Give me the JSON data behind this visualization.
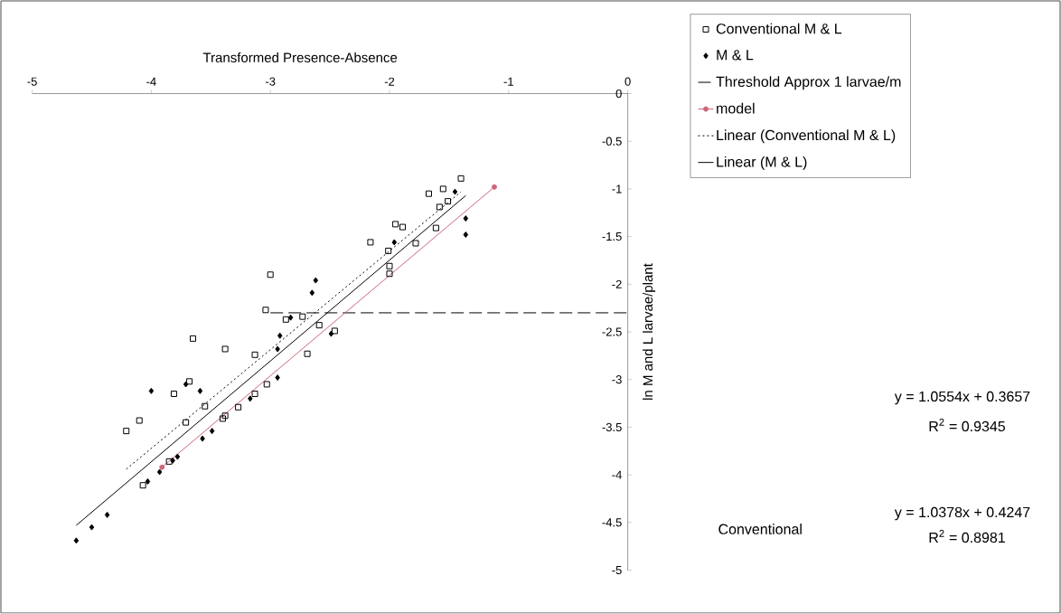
{
  "chart_data": {
    "type": "scatter",
    "xlabel": "Transformed Presence-Absence",
    "ylabel": "ln M and L larvae/plant",
    "xlim": [
      -5,
      0
    ],
    "ylim": [
      -5,
      0
    ],
    "xticks": [
      -5,
      -4,
      -3,
      -2,
      -1,
      0
    ],
    "yticks": [
      0,
      -0.5,
      -1,
      -1.5,
      -2,
      -2.5,
      -3,
      -3.5,
      -4,
      -4.5,
      -5
    ],
    "legend": "top right",
    "series": [
      {
        "name": "Conventional M & L",
        "marker": "square",
        "color": "#000000",
        "x": [
          -1.4,
          -1.55,
          -1.67,
          -1.51,
          -1.58,
          -1.61,
          -1.95,
          -1.89,
          -1.78,
          -2.16,
          -2.01,
          -2.0,
          -2.0,
          -3.0,
          -3.04,
          -2.87,
          -2.73,
          -2.59,
          -2.46,
          -2.69,
          -3.13,
          -3.38,
          -3.65,
          -3.68,
          -3.81,
          -3.03,
          -3.13,
          -3.27,
          -3.38,
          -3.4,
          -3.55,
          -3.71,
          -4.1,
          -4.21,
          -3.85,
          -4.07
        ],
        "values": [
          -0.89,
          -1.0,
          -1.05,
          -1.13,
          -1.19,
          -1.41,
          -1.37,
          -1.4,
          -1.57,
          -1.56,
          -1.65,
          -1.81,
          -1.89,
          -1.9,
          -2.27,
          -2.37,
          -2.34,
          -2.43,
          -2.49,
          -2.73,
          -2.74,
          -2.68,
          -2.57,
          -3.02,
          -3.15,
          -3.05,
          -3.15,
          -3.29,
          -3.38,
          -3.41,
          -3.28,
          -3.45,
          -3.43,
          -3.54,
          -3.86,
          -4.11
        ]
      },
      {
        "name": "M & L",
        "marker": "diamond",
        "color": "#000000",
        "x": [
          -1.45,
          -1.36,
          -1.36,
          -1.96,
          -2.62,
          -2.65,
          -2.83,
          -2.92,
          -2.94,
          -2.49,
          -2.94,
          -3.17,
          -3.71,
          -4.0,
          -3.59,
          -3.57,
          -3.49,
          -3.78,
          -3.82,
          -3.93,
          -4.03,
          -4.37,
          -4.5,
          -4.63
        ],
        "values": [
          -1.03,
          -1.31,
          -1.48,
          -1.56,
          -1.96,
          -2.09,
          -2.35,
          -2.54,
          -2.68,
          -2.52,
          -2.98,
          -3.2,
          -3.05,
          -3.12,
          -3.12,
          -3.62,
          -3.54,
          -3.81,
          -3.85,
          -3.97,
          -4.07,
          -4.42,
          -4.55,
          -4.69
        ]
      },
      {
        "name": "Threshold Approx 1 larvae/m",
        "type": "line",
        "marker": "none",
        "line_style": "dashed",
        "color": "#000000",
        "x": [
          -3.0,
          0
        ],
        "values": [
          -2.3,
          -2.3
        ]
      },
      {
        "name": "model",
        "type": "line",
        "marker": "circle",
        "line_style": "solid",
        "color": "#cc6677",
        "x": [
          -3.91,
          -1.12
        ],
        "values": [
          -3.92,
          -0.98
        ]
      },
      {
        "name": "Linear (Conventional M & L)",
        "type": "line",
        "marker": "none",
        "line_style": "dotted",
        "color": "#000000",
        "x": [
          -4.21,
          -1.4
        ],
        "values": [
          -3.94,
          -1.03
        ]
      },
      {
        "name": "Linear (M & L)",
        "type": "line",
        "marker": "none",
        "line_style": "solid",
        "color": "#000000",
        "x": [
          -4.63,
          -1.36
        ],
        "values": [
          -4.53,
          -1.07
        ]
      }
    ],
    "annotations": [
      "y = 1.0554x + 0.3657",
      "R$^{2}$ = 0.9345",
      "Conventional",
      "y = 1.0378x + 0.4247",
      "R$^{2}$ = 0.8981"
    ]
  }
}
